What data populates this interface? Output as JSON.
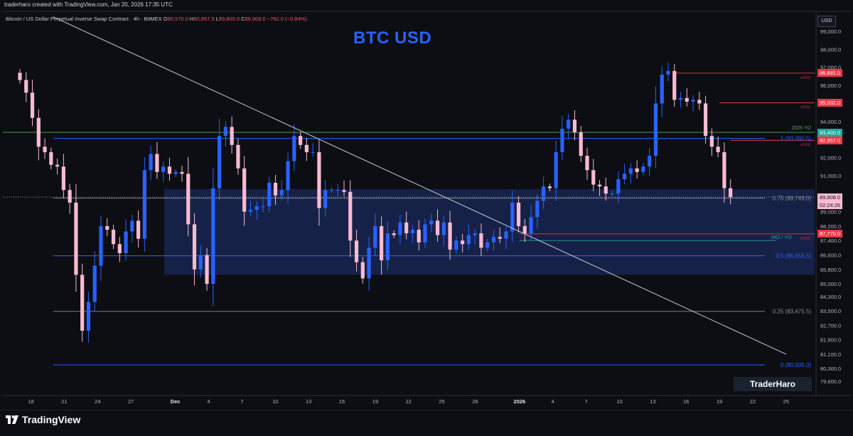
{
  "header": {
    "created_by": "traderharo created with TradingView.com, Jan 20, 2026 17:35 UTC",
    "symbol": "Bitcoin / US Dollar Perpetual Inverse Swap Contract · 4h · BitMEX",
    "ohlc": {
      "o_label": "O",
      "o": "90,570.0",
      "h_label": "H",
      "h": "90,857.5",
      "l_label": "L",
      "l": "89,800.0",
      "c_label": "C",
      "c": "89,808.0",
      "change": "−762.0 (−0.84%)"
    },
    "currency": "USD"
  },
  "title": "BTC USD",
  "watermark": "TraderHaro",
  "footer_logo": "TradingView",
  "colors": {
    "background": "#0c0e14",
    "up": "#2962ff",
    "down": "#f8bbd0",
    "accent_blue": "#2962ff",
    "red": "#f23645",
    "green": "#26a69a"
  },
  "price_axis": [
    "99,000.0",
    "98,000.0",
    "97,000.0",
    "96,000.0",
    "94,000.0",
    "92,000.0",
    "91,000.0",
    "89,000.0",
    "88,200.0",
    "87,400.0",
    "86,600.0",
    "85,800.0",
    "85,000.0",
    "84,300.0",
    "83,500.0",
    "82,700.0",
    "81,900.0",
    "81,100.0",
    "80,300.0",
    "79,600.0"
  ],
  "time_axis": [
    "18",
    "21",
    "24",
    "27",
    "Dec",
    "4",
    "7",
    "10",
    "13",
    "16",
    "19",
    "22",
    "25",
    "28",
    "2026",
    "4",
    "7",
    "10",
    "13",
    "16",
    "19",
    "22",
    "25"
  ],
  "price_tags": [
    {
      "text": "96,681.5",
      "kind": "red"
    },
    {
      "text": "95,032.0",
      "kind": "red"
    },
    {
      "text": "93,400.0",
      "kind": "green"
    },
    {
      "text": "92,957.0",
      "kind": "red"
    },
    {
      "text": "89,808.0",
      "kind": "last"
    },
    {
      "text": "02:24:26",
      "kind": "countdown"
    },
    {
      "text": "87,770.0",
      "kind": "red"
    }
  ],
  "annotations": {
    "yo_2025": "2025 YO",
    "mo_yo": "MO / YO",
    "npoc_1": "nPOC",
    "npoc_2": "nPOC",
    "npoc_3": "nPOC",
    "npoc_4": "nPOC"
  },
  "fib_levels": [
    {
      "label": "1 (93,060.5)",
      "price": 93060.5
    },
    {
      "label": "0.75 (89,749.0)",
      "price": 89749.0
    },
    {
      "label": "0.5 (86,555.5)",
      "price": 86555.5
    },
    {
      "label": "0.25 (83,475.5)",
      "price": 83475.5
    },
    {
      "label": "0 (80,505.0)",
      "price": 80505.0
    }
  ],
  "chart_data": {
    "type": "candlestick",
    "timeframe": "4h",
    "x_start": "Nov 17 2025",
    "x_end": "Jan 20 2026",
    "ylim": [
      79300,
      99800
    ],
    "zone": {
      "top": 90250,
      "bottom": 85500
    },
    "key_levels": [
      {
        "name": "2025 YO",
        "price": 93400.0
      },
      {
        "name": "MO / YO",
        "price": 87400.0
      },
      {
        "name": "nPOC",
        "price": 96681.5
      },
      {
        "name": "nPOC",
        "price": 95032.0
      },
      {
        "name": "nPOC",
        "price": 92957.0
      },
      {
        "name": "nPOC",
        "price": 87770.0
      }
    ],
    "trendline": {
      "from": {
        "date": "Nov 20 2025",
        "price": 99800
      },
      "to": {
        "date": "Jan 25 2026",
        "price": 81100
      }
    },
    "closes": [
      96300,
      95600,
      94200,
      92600,
      92300,
      91600,
      91500,
      90200,
      89500,
      85500,
      82400,
      84000,
      86000,
      88200,
      88000,
      87200,
      86700,
      87900,
      88500,
      87500,
      91300,
      92200,
      91200,
      91500,
      91100,
      91200,
      91100,
      88300,
      85800,
      86600,
      85000,
      90300,
      93200,
      93700,
      92700,
      91400,
      89000,
      89100,
      89300,
      89300,
      90600,
      89900,
      90200,
      91800,
      93200,
      92700,
      92300,
      92300,
      89200,
      90200,
      90200,
      90200,
      90100,
      87400,
      86200,
      85300,
      87000,
      88200,
      86300,
      87800,
      87700,
      88400,
      87800,
      88000,
      87300,
      88300,
      88500,
      87700,
      88400,
      86900,
      87400,
      87200,
      87700,
      87800,
      87000,
      87300,
      87600,
      87500,
      87900,
      89500,
      88200,
      87800,
      88700,
      89600,
      90400,
      90300,
      92300,
      93600,
      94100,
      93400,
      92100,
      91300,
      90500,
      90400,
      90000,
      90000,
      90800,
      91100,
      91400,
      91200,
      91500,
      92100,
      95000,
      96600,
      96800,
      95200,
      95300,
      95100,
      95200,
      95000,
      93200,
      92600,
      92300,
      90300,
      89808
    ]
  }
}
